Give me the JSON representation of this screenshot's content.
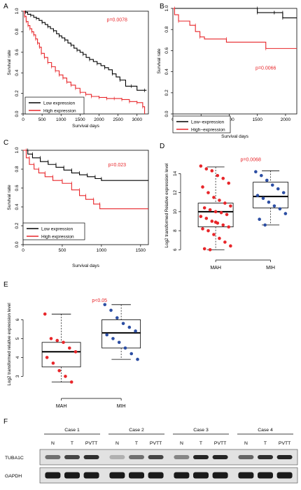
{
  "colors": {
    "black": "#000000",
    "red": "#e8262a",
    "blue": "#2c4ea3",
    "dark_red": "#c0262a"
  },
  "chart_data": [
    {
      "panel": "A",
      "type": "line",
      "title": "",
      "xlabel": "Survival days",
      "ylabel": "Survival rate",
      "xlim": [
        0,
        3300
      ],
      "ylim": [
        0,
        1
      ],
      "xticks": [
        0,
        500,
        1000,
        1500,
        2000,
        2500,
        3000
      ],
      "yticks": [
        0.0,
        0.2,
        0.4,
        0.6,
        0.8,
        1.0
      ],
      "annotation": "p=0.0078",
      "legend_position": "bottom-left",
      "series": [
        {
          "name": "Low expression",
          "color": "#000000",
          "x": [
            0,
            60,
            120,
            200,
            280,
            350,
            420,
            500,
            580,
            650,
            720,
            800,
            880,
            950,
            1020,
            1100,
            1180,
            1260,
            1340,
            1420,
            1500,
            1580,
            1660,
            1750,
            1850,
            1950,
            2050,
            2150,
            2250,
            2350,
            2450,
            2550,
            2700,
            2850,
            3000,
            3200,
            3250
          ],
          "y": [
            1,
            0.99,
            0.97,
            0.96,
            0.94,
            0.93,
            0.91,
            0.89,
            0.87,
            0.85,
            0.83,
            0.81,
            0.78,
            0.76,
            0.74,
            0.72,
            0.69,
            0.67,
            0.64,
            0.62,
            0.6,
            0.58,
            0.55,
            0.53,
            0.51,
            0.49,
            0.47,
            0.45,
            0.43,
            0.39,
            0.36,
            0.33,
            0.27,
            0.27,
            0.23,
            0.23,
            0.23
          ]
        },
        {
          "name": "High expression",
          "color": "#e8262a",
          "x": [
            0,
            40,
            80,
            130,
            180,
            230,
            280,
            330,
            380,
            430,
            480,
            560,
            650,
            750,
            850,
            950,
            1050,
            1150,
            1260,
            1380,
            1500,
            1650,
            1800,
            2000,
            2200,
            2400,
            2600,
            2800,
            3000,
            3150,
            3200
          ],
          "y": [
            1,
            0.95,
            0.9,
            0.86,
            0.83,
            0.8,
            0.77,
            0.73,
            0.69,
            0.65,
            0.59,
            0.55,
            0.5,
            0.46,
            0.42,
            0.38,
            0.35,
            0.31,
            0.28,
            0.25,
            0.21,
            0.19,
            0.17,
            0.16,
            0.15,
            0.15,
            0.14,
            0.12,
            0.11,
            0.07,
            0.0
          ]
        }
      ]
    },
    {
      "panel": "B",
      "type": "line",
      "title": "",
      "xlabel": "Survival days",
      "ylabel": "Survival rate",
      "xlim": [
        0,
        2200
      ],
      "ylim": [
        0,
        1
      ],
      "xticks": [
        0,
        500,
        1000,
        1500,
        2000
      ],
      "yticks": [
        0.0,
        0.2,
        0.4,
        0.6,
        0.8,
        1.0
      ],
      "annotation": "p=0.0066",
      "legend_position": "top-left",
      "series": [
        {
          "name": "Low−expression",
          "color": "#000000",
          "x": [
            0,
            1500,
            1500,
            1800,
            1800,
            1950,
            1950,
            2200
          ],
          "y": [
            1,
            1,
            0.96,
            0.96,
            0.96,
            0.96,
            0.91,
            0.91
          ]
        },
        {
          "name": "High−expression",
          "color": "#e8262a",
          "x": [
            0,
            30,
            30,
            100,
            100,
            300,
            300,
            400,
            400,
            480,
            480,
            560,
            560,
            950,
            950,
            1650,
            1650,
            2200
          ],
          "y": [
            1,
            1,
            0.94,
            0.94,
            0.88,
            0.88,
            0.84,
            0.84,
            0.78,
            0.78,
            0.73,
            0.73,
            0.71,
            0.71,
            0.68,
            0.68,
            0.62,
            0.62
          ]
        }
      ]
    },
    {
      "panel": "C",
      "type": "line",
      "title": "",
      "xlabel": "Survival days",
      "ylabel": "Survival rate",
      "xlim": [
        0,
        1600
      ],
      "ylim": [
        0,
        1
      ],
      "xticks": [
        0,
        500,
        1000,
        1500
      ],
      "yticks": [
        0.0,
        0.2,
        0.4,
        0.6,
        0.8,
        1.0
      ],
      "annotation": "p=0.023",
      "legend_position": "bottom-left",
      "series": [
        {
          "name": "Low expression",
          "color": "#000000",
          "x": [
            0,
            60,
            60,
            120,
            120,
            220,
            220,
            320,
            320,
            420,
            420,
            520,
            520,
            620,
            620,
            720,
            720,
            820,
            820,
            920,
            920,
            1000,
            1000,
            1600
          ],
          "y": [
            1,
            1,
            0.96,
            0.96,
            0.92,
            0.92,
            0.88,
            0.88,
            0.85,
            0.85,
            0.82,
            0.82,
            0.79,
            0.79,
            0.76,
            0.76,
            0.74,
            0.74,
            0.72,
            0.72,
            0.7,
            0.7,
            0.68,
            0.68
          ]
        },
        {
          "name": "High expression",
          "color": "#e8262a",
          "x": [
            0,
            40,
            40,
            80,
            80,
            140,
            140,
            200,
            200,
            280,
            280,
            380,
            380,
            500,
            500,
            620,
            620,
            720,
            720,
            800,
            800,
            900,
            900,
            980,
            980,
            1600
          ],
          "y": [
            1,
            1,
            0.92,
            0.92,
            0.85,
            0.85,
            0.8,
            0.8,
            0.76,
            0.76,
            0.72,
            0.72,
            0.68,
            0.68,
            0.65,
            0.65,
            0.58,
            0.58,
            0.52,
            0.52,
            0.48,
            0.48,
            0.43,
            0.43,
            0.38,
            0.38
          ]
        }
      ]
    },
    {
      "panel": "D",
      "type": "box",
      "title": "",
      "xlabel": "",
      "ylabel": "Log2 transformed Relative expression level",
      "ylim": [
        5.8,
        15.5
      ],
      "yticks": [
        6,
        8,
        10,
        12,
        14
      ],
      "categories": [
        "MAH",
        "MIH"
      ],
      "annotation": "p=0.0068",
      "groups": [
        {
          "name": "MAH",
          "color": "#e8262a",
          "min": 6.0,
          "q1": 8.4,
          "median": 10.0,
          "q3": 10.9,
          "max": 14.7,
          "points": [
            14.8,
            14.5,
            14.3,
            13.8,
            13.5,
            13.0,
            12.6,
            12.0,
            11.5,
            11.2,
            10.9,
            10.6,
            10.4,
            10.2,
            10.0,
            9.9,
            9.7,
            9.5,
            9.3,
            9.0,
            8.8,
            8.6,
            8.4,
            8.2,
            8.0,
            7.6,
            7.2,
            6.8,
            6.4,
            6.1,
            6.0,
            8.9
          ]
        },
        {
          "name": "MIH",
          "color": "#2c4ea3",
          "min": 8.6,
          "q1": 10.4,
          "median": 11.6,
          "q3": 13.1,
          "max": 14.3,
          "points": [
            14.2,
            13.8,
            13.3,
            12.8,
            12.4,
            12.0,
            11.7,
            11.4,
            11.0,
            10.6,
            10.3,
            9.8,
            9.2,
            8.6
          ]
        }
      ]
    },
    {
      "panel": "E",
      "type": "box",
      "title": "",
      "xlabel": "",
      "ylabel": "Log2 transformed relative expression level",
      "ylim": [
        2.2,
        7.2
      ],
      "yticks": [
        3,
        4,
        5,
        6
      ],
      "categories": [
        "MAH",
        "MIH"
      ],
      "annotation": "p<0.05",
      "groups": [
        {
          "name": "MAH",
          "color": "#e8262a",
          "min": 2.7,
          "q1": 3.5,
          "median": 4.3,
          "q3": 4.8,
          "max": 6.3,
          "points": [
            6.3,
            5.0,
            4.9,
            4.8,
            4.5,
            4.3,
            4.0,
            3.7,
            3.3,
            3.0,
            2.7
          ]
        },
        {
          "name": "MIH",
          "color": "#2c4ea3",
          "min": 3.9,
          "q1": 4.5,
          "median": 5.3,
          "q3": 6.0,
          "max": 6.8,
          "points": [
            6.8,
            6.5,
            6.1,
            5.8,
            5.6,
            5.4,
            5.2,
            5.0,
            4.8,
            4.5,
            4.2,
            3.9
          ]
        }
      ]
    }
  ],
  "panels": {
    "a": "A",
    "b": "B",
    "c": "C",
    "d": "D",
    "e": "E",
    "f": "F"
  },
  "blot": {
    "cases": [
      "Case 1",
      "Case 2",
      "Case 3",
      "Case 4"
    ],
    "lanes": [
      "N",
      "T",
      "PVTT"
    ],
    "rows": [
      {
        "label": "TUBA1C",
        "intensity": [
          0.55,
          0.75,
          0.85,
          0.25,
          0.55,
          0.75,
          0.45,
          0.9,
          0.9,
          0.6,
          0.85,
          0.9
        ]
      },
      {
        "label": "GAPDH",
        "intensity": [
          0.95,
          0.95,
          0.95,
          0.95,
          0.95,
          0.95,
          0.95,
          0.95,
          0.95,
          0.95,
          0.95,
          0.95
        ]
      }
    ]
  }
}
